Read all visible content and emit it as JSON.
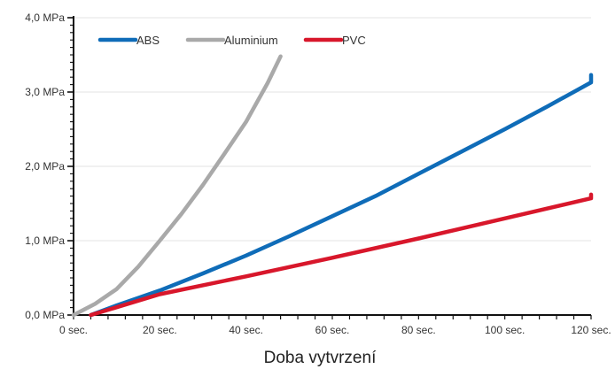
{
  "chart_data": {
    "type": "line",
    "title": "",
    "xlabel": "Doba vytvrzení",
    "ylabel": "",
    "xlim": [
      0,
      120
    ],
    "ylim": [
      0,
      4
    ],
    "grid": "horizontal",
    "legend_position": "top-left",
    "x_ticks": [
      {
        "value": 0,
        "label": "0 sec."
      },
      {
        "value": 20,
        "label": "20 sec."
      },
      {
        "value": 40,
        "label": "40 sec."
      },
      {
        "value": 60,
        "label": "60 sec."
      },
      {
        "value": 80,
        "label": "80 sec."
      },
      {
        "value": 100,
        "label": "100 sec."
      },
      {
        "value": 120,
        "label": "120 sec."
      }
    ],
    "y_ticks": [
      {
        "value": 0,
        "label": "0,0 MPa"
      },
      {
        "value": 1,
        "label": "1,0 MPa"
      },
      {
        "value": 2,
        "label": "2,0 MPa"
      },
      {
        "value": 3,
        "label": "3,0 MPa"
      },
      {
        "value": 4,
        "label": "4,0 MPa"
      }
    ],
    "series": [
      {
        "name": "ABS",
        "color": "#0f6cb8",
        "points": [
          [
            4,
            0
          ],
          [
            10,
            0.13
          ],
          [
            20,
            0.33
          ],
          [
            30,
            0.56
          ],
          [
            40,
            0.8
          ],
          [
            50,
            1.06
          ],
          [
            60,
            1.33
          ],
          [
            70,
            1.6
          ],
          [
            80,
            1.9
          ],
          [
            90,
            2.2
          ],
          [
            100,
            2.5
          ],
          [
            110,
            2.81
          ],
          [
            120,
            3.13
          ],
          [
            123,
            3.23
          ]
        ]
      },
      {
        "name": "Aluminium",
        "color": "#a9a9a9",
        "points": [
          [
            0,
            0
          ],
          [
            5,
            0.15
          ],
          [
            10,
            0.35
          ],
          [
            15,
            0.65
          ],
          [
            20,
            1.0
          ],
          [
            25,
            1.36
          ],
          [
            30,
            1.75
          ],
          [
            35,
            2.17
          ],
          [
            40,
            2.6
          ],
          [
            45,
            3.12
          ],
          [
            48,
            3.48
          ]
        ]
      },
      {
        "name": "PVC",
        "color": "#d8172b",
        "points": [
          [
            4,
            0
          ],
          [
            20,
            0.28
          ],
          [
            40,
            0.52
          ],
          [
            60,
            0.77
          ],
          [
            80,
            1.03
          ],
          [
            100,
            1.3
          ],
          [
            120,
            1.57
          ],
          [
            123,
            1.62
          ]
        ]
      }
    ]
  }
}
